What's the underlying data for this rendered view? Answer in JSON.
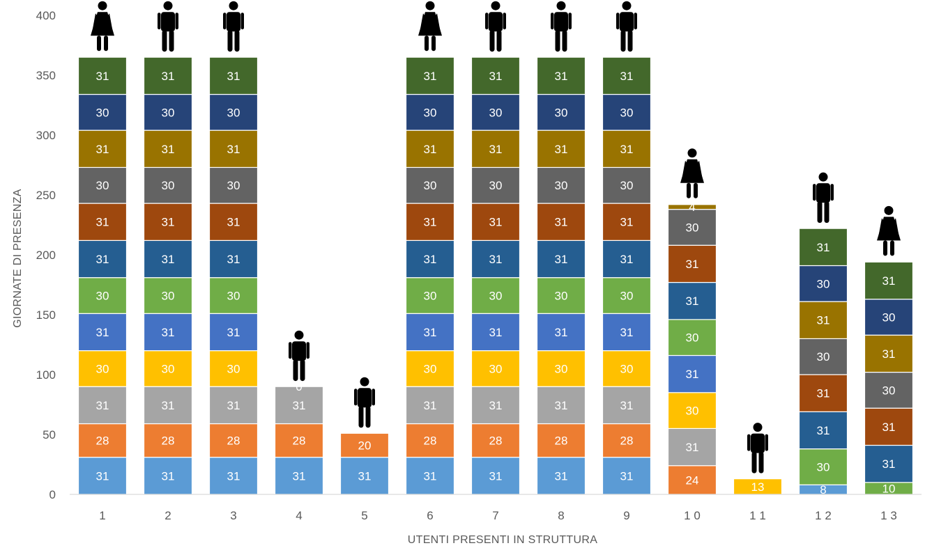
{
  "chart_data": {
    "type": "bar",
    "stacked": true,
    "title": "",
    "xlabel": "UTENTI PRESENTI IN STRUTTURA",
    "ylabel": "GIORNATE DI PRESENZA",
    "ylim": [
      0,
      400
    ],
    "yticks": [
      0,
      50,
      100,
      150,
      200,
      250,
      300,
      350,
      400
    ],
    "grid": false,
    "legend": "none",
    "categories": [
      "1",
      "2",
      "3",
      "4",
      "5",
      "6",
      "7",
      "8",
      "9",
      "1 0",
      "1 1",
      "1 2",
      "1 3"
    ],
    "person_icons": [
      "female",
      "male",
      "male",
      "male",
      "male",
      "female",
      "male",
      "male",
      "male",
      "female",
      "male",
      "male",
      "female"
    ],
    "series": [
      {
        "color": "#5b9bd5",
        "values": [
          31,
          31,
          31,
          31,
          31,
          31,
          31,
          31,
          31,
          null,
          null,
          8,
          null
        ]
      },
      {
        "color": "#ed7d31",
        "values": [
          28,
          28,
          28,
          28,
          20,
          28,
          28,
          28,
          28,
          24,
          null,
          null,
          null
        ]
      },
      {
        "color": "#a5a5a5",
        "values": [
          31,
          31,
          31,
          31,
          null,
          31,
          31,
          31,
          31,
          31,
          null,
          null,
          null
        ]
      },
      {
        "color": "#ffc000",
        "values": [
          30,
          30,
          30,
          0,
          null,
          30,
          30,
          30,
          30,
          30,
          13,
          null,
          null
        ]
      },
      {
        "color": "#4472c4",
        "values": [
          31,
          31,
          31,
          null,
          null,
          31,
          31,
          31,
          31,
          31,
          null,
          null,
          null
        ]
      },
      {
        "color": "#70ad47",
        "values": [
          30,
          30,
          30,
          null,
          null,
          30,
          30,
          30,
          30,
          30,
          null,
          30,
          10
        ]
      },
      {
        "color": "#255e91",
        "values": [
          31,
          31,
          31,
          null,
          null,
          31,
          31,
          31,
          31,
          31,
          null,
          31,
          31
        ]
      },
      {
        "color": "#9e480e",
        "values": [
          31,
          31,
          31,
          null,
          null,
          31,
          31,
          31,
          31,
          31,
          null,
          31,
          31
        ]
      },
      {
        "color": "#636363",
        "values": [
          30,
          30,
          30,
          null,
          null,
          30,
          30,
          30,
          30,
          30,
          null,
          30,
          30
        ]
      },
      {
        "color": "#997300",
        "values": [
          31,
          31,
          31,
          null,
          null,
          31,
          31,
          31,
          31,
          4,
          null,
          31,
          31
        ]
      },
      {
        "color": "#264478",
        "values": [
          30,
          30,
          30,
          null,
          null,
          30,
          30,
          30,
          30,
          null,
          null,
          30,
          30
        ]
      },
      {
        "color": "#43682b",
        "values": [
          31,
          31,
          31,
          null,
          null,
          31,
          31,
          31,
          31,
          null,
          null,
          31,
          31
        ]
      }
    ]
  }
}
